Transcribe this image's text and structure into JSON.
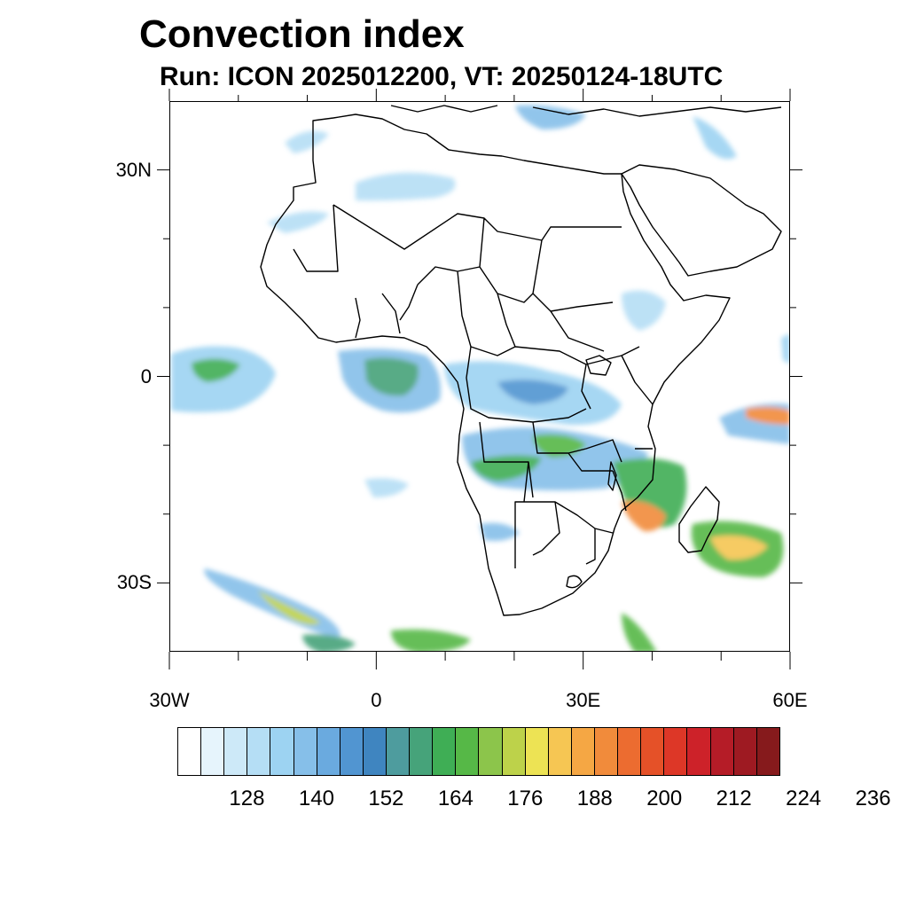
{
  "title": "Convection index",
  "subtitle": "Run: ICON 2025012200,  VT: 20250124-18UTC",
  "map": {
    "region": "Africa",
    "variable": "Convection index",
    "lon_range": [
      -30,
      60
    ],
    "lat_range": [
      -40,
      40
    ],
    "lat_labels": [
      {
        "lat": 30,
        "text": "30N"
      },
      {
        "lat": 0,
        "text": "0"
      },
      {
        "lat": -30,
        "text": "30S"
      }
    ],
    "lon_labels": [
      {
        "lon": -30,
        "text": "30W"
      },
      {
        "lon": 0,
        "text": "0"
      },
      {
        "lon": 30,
        "text": "30E"
      },
      {
        "lon": 60,
        "text": "60E"
      }
    ],
    "minor_lon_ticks": [
      -20,
      -10,
      10,
      20,
      40,
      50
    ],
    "minor_lat_ticks": [
      20,
      10,
      -10,
      -20
    ]
  },
  "colorbar": {
    "colors": [
      "#ffffff",
      "#e6f4fc",
      "#cde9f8",
      "#b5def5",
      "#9dd3f2",
      "#86bfe9",
      "#6aaadf",
      "#5195d1",
      "#3f85c0",
      "#4e9c9e",
      "#46a37a",
      "#3fae55",
      "#56b847",
      "#8cc54b",
      "#bdd24a",
      "#ede354",
      "#f6c653",
      "#f5a744",
      "#f18b3b",
      "#ec6c30",
      "#e55128",
      "#dd3727",
      "#cd2229",
      "#b51c27",
      "#9e1a22",
      "#861a1c"
    ],
    "labels": [
      "128",
      "140",
      "152",
      "164",
      "176",
      "188",
      "200",
      "212",
      "224",
      "236"
    ],
    "label_after_box": [
      3,
      6,
      9,
      12,
      15,
      18,
      21,
      24,
      27,
      30
    ]
  }
}
